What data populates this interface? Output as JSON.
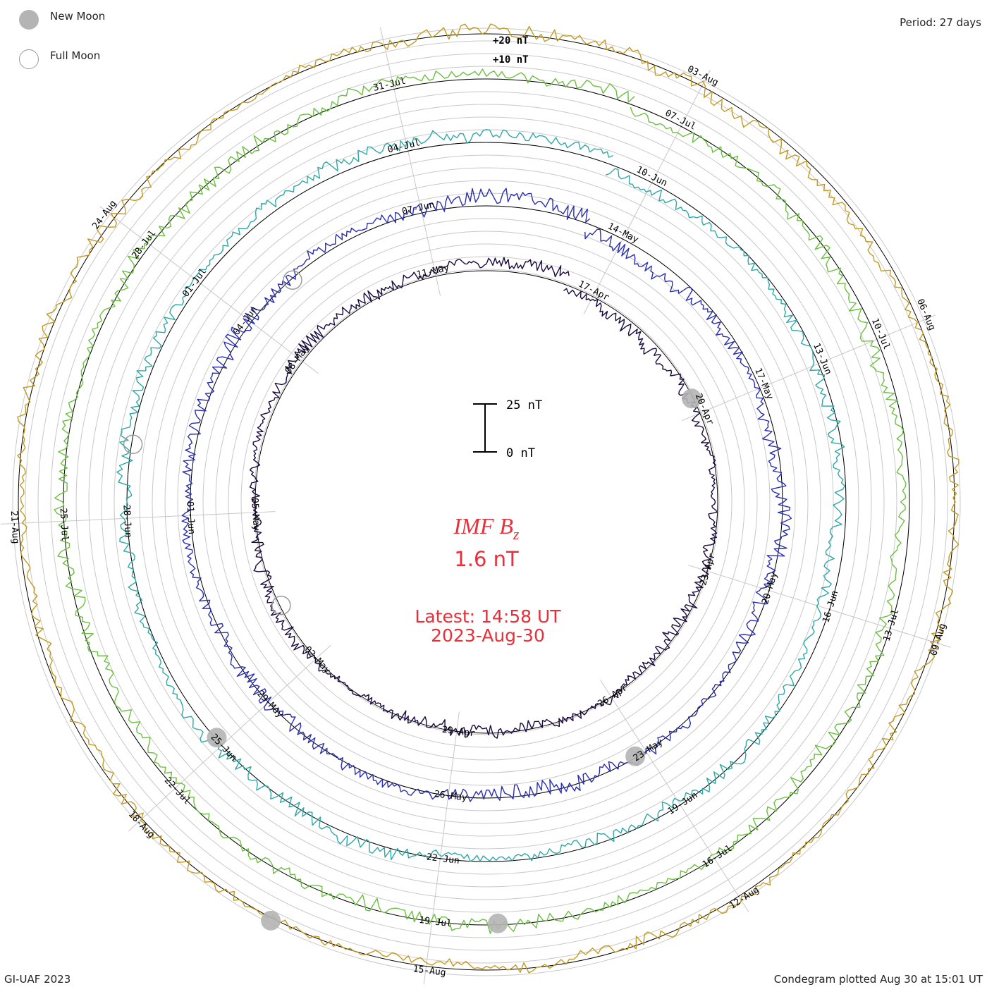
{
  "header": {
    "legend": [
      {
        "label": "New Moon",
        "fill": "#b4b4b4",
        "stroke": "#b4b4b4"
      },
      {
        "label": "Full Moon",
        "fill": "none",
        "stroke": "#9a9a9a"
      }
    ],
    "period": "Period: 27 days"
  },
  "footer": {
    "credit": "GI-UAF 2023",
    "plotted": "Condegram plotted Aug 30 at 15:01 UT"
  },
  "center": {
    "parameter_main": "IMF B",
    "parameter_sub": "z",
    "current_value": "1.6 nT",
    "latest_label": "Latest: 14:58 UT",
    "latest_date": "2023-Aug-30",
    "scale_top": "25 nT",
    "scale_bottom": "0 nT"
  },
  "chart_data": {
    "type": "line",
    "subtype": "polar condegram (spiral time series)",
    "title": "IMF Bz",
    "period_days": 27,
    "rotation_label_offsets_nT": [
      "+20 nT",
      "+10 nT"
    ],
    "grid": true,
    "turns": [
      {
        "turn": 1,
        "color": "#1a0a40",
        "date_labels": [
          "17-Apr",
          "20-Apr",
          "23-Apr",
          "26-Apr",
          "29-Apr",
          "02-May",
          "05-May",
          "08-May",
          "11-May"
        ]
      },
      {
        "turn": 2,
        "color": "#2a2fb0",
        "date_labels": [
          "14-May",
          "17-May",
          "20-May",
          "23-May",
          "26-May",
          "29-May",
          "01-Jun",
          "04-Jun",
          "07-Jun"
        ]
      },
      {
        "turn": 3,
        "color": "#2fa8a8",
        "date_labels": [
          "10-Jun",
          "13-Jun",
          "16-Jun",
          "19-Jun",
          "22-Jun",
          "25-Jun",
          "28-Jun",
          "01-Jul",
          "04-Jul"
        ]
      },
      {
        "turn": 4,
        "color": "#6cc040",
        "date_labels": [
          "07-Jul",
          "10-Jul",
          "13-Jul",
          "16-Jul",
          "19-Jul",
          "22-Jul",
          "25-Jul",
          "28-Jul",
          "31-Jul"
        ]
      },
      {
        "turn": 5,
        "color": "#c49a20",
        "date_labels": [
          "03-Aug",
          "06-Aug",
          "09-Aug",
          "12-Aug",
          "15-Aug",
          "18-Aug",
          "21-Aug",
          "24-Aug"
        ]
      }
    ],
    "moon_markers": {
      "new_moon_count": 5,
      "full_moon_count": 5
    }
  }
}
